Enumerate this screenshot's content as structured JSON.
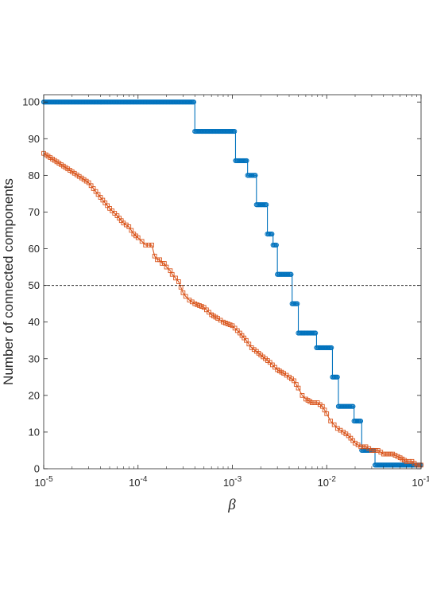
{
  "chart_data": {
    "type": "line",
    "xscale": "log",
    "xlabel": "β",
    "ylabel": "Number of connected components",
    "xlim": [
      1e-05,
      0.1
    ],
    "ylim": [
      0,
      102
    ],
    "x_tick_values": [
      1e-05,
      0.0001,
      0.001,
      0.01,
      0.1
    ],
    "x_tick_labels": [
      {
        "base": "10",
        "exp": "-5"
      },
      {
        "base": "10",
        "exp": "-4"
      },
      {
        "base": "10",
        "exp": "-3"
      },
      {
        "base": "10",
        "exp": "-2"
      },
      {
        "base": "10",
        "exp": "-1"
      }
    ],
    "y_ticks": [
      0,
      10,
      20,
      30,
      40,
      50,
      60,
      70,
      80,
      90,
      100
    ],
    "grid": false,
    "reference_line": {
      "y": 50,
      "style": "dashed",
      "color": "#262626"
    },
    "colors": {
      "series_blue": "#0072BD",
      "series_orange": "#D95319"
    },
    "series": [
      {
        "marker": "circle",
        "color": "#0072BD",
        "steps": [
          [
            1e-05,
            0.0004,
            100
          ],
          [
            0.0004,
            0.00108,
            92
          ],
          [
            0.00108,
            0.00145,
            84
          ],
          [
            0.00145,
            0.0018,
            80
          ],
          [
            0.0018,
            0.00235,
            72
          ],
          [
            0.00235,
            0.0027,
            64
          ],
          [
            0.0027,
            0.003,
            61
          ],
          [
            0.003,
            0.0043,
            53
          ],
          [
            0.0043,
            0.005,
            45
          ],
          [
            0.005,
            0.0078,
            37
          ],
          [
            0.0078,
            0.0115,
            33
          ],
          [
            0.0115,
            0.0133,
            25
          ],
          [
            0.0133,
            0.0195,
            17
          ],
          [
            0.0195,
            0.0235,
            13
          ],
          [
            0.0235,
            0.0325,
            5
          ],
          [
            0.0325,
            0.088,
            1
          ],
          [
            0.088,
            0.1,
            1
          ]
        ]
      },
      {
        "marker": "square",
        "color": "#D95319",
        "points": [
          [
            1e-05,
            86
          ],
          [
            2e-05,
            81
          ],
          [
            3e-05,
            78
          ],
          [
            4e-05,
            74
          ],
          [
            5e-05,
            71
          ],
          [
            6e-05,
            69
          ],
          [
            7e-05,
            67
          ],
          [
            8e-05,
            66
          ],
          [
            9e-05,
            64
          ],
          [
            0.0001,
            63
          ],
          [
            0.00011,
            62
          ],
          [
            0.00012,
            61
          ],
          [
            0.00013,
            61
          ],
          [
            0.00014,
            61
          ],
          [
            0.00015,
            58
          ],
          [
            0.00016,
            57
          ],
          [
            0.00017,
            57
          ],
          [
            0.00018,
            56
          ],
          [
            0.00019,
            56
          ],
          [
            0.0002,
            55
          ],
          [
            0.00022,
            54
          ],
          [
            0.00023,
            53
          ],
          [
            0.00025,
            52
          ],
          [
            0.00027,
            51
          ],
          [
            0.0003,
            48
          ],
          [
            0.00032,
            47
          ],
          [
            0.00035,
            46
          ],
          [
            0.0004,
            45
          ],
          [
            0.0005,
            44
          ],
          [
            0.0006,
            42
          ],
          [
            0.0007,
            41
          ],
          [
            0.0008,
            40
          ],
          [
            0.001,
            39
          ],
          [
            0.0012,
            37
          ],
          [
            0.0014,
            35
          ],
          [
            0.0016,
            33
          ],
          [
            0.0018,
            32
          ],
          [
            0.002,
            31
          ],
          [
            0.0025,
            29
          ],
          [
            0.003,
            27
          ],
          [
            0.0035,
            26
          ],
          [
            0.004,
            25
          ],
          [
            0.0045,
            24
          ],
          [
            0.005,
            22
          ],
          [
            0.0055,
            20
          ],
          [
            0.006,
            19
          ],
          [
            0.007,
            18
          ],
          [
            0.008,
            18
          ],
          [
            0.009,
            17
          ],
          [
            0.01,
            15
          ],
          [
            0.011,
            13
          ],
          [
            0.012,
            12
          ],
          [
            0.013,
            11
          ],
          [
            0.015,
            10
          ],
          [
            0.017,
            9
          ],
          [
            0.02,
            7
          ],
          [
            0.023,
            6
          ],
          [
            0.026,
            6
          ],
          [
            0.03,
            5
          ],
          [
            0.035,
            5
          ],
          [
            0.04,
            4
          ],
          [
            0.05,
            4
          ],
          [
            0.06,
            3
          ],
          [
            0.07,
            2
          ],
          [
            0.08,
            2
          ],
          [
            0.09,
            1
          ],
          [
            0.1,
            1
          ]
        ]
      }
    ]
  }
}
